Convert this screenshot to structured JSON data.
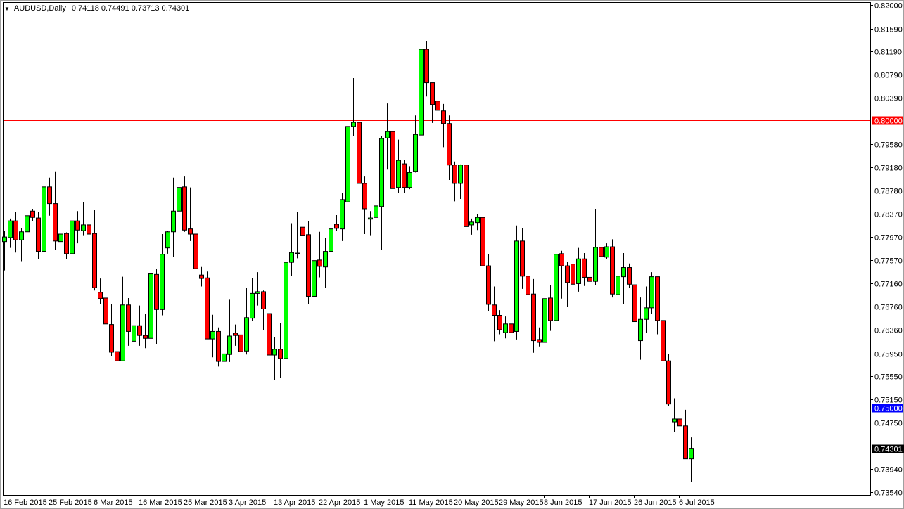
{
  "header": {
    "symbol": "AUDUSD,Daily",
    "ohlc": "0.74118 0.74491 0.73713 0.74301",
    "dropdown_icon": "triangle-down-icon"
  },
  "colors": {
    "bull": "#00ff00",
    "bear": "#ff0000",
    "outline": "#000000",
    "resistance_line": "#ff0000",
    "support_line": "#0000ff",
    "price_label": "#000000"
  },
  "chart_data": {
    "type": "candlestick",
    "title": "",
    "symbol": "AUDUSD",
    "timeframe": "Daily",
    "ylim": [
      0.7354,
      0.82
    ],
    "grid": false,
    "y_ticks": [
      "0.82000",
      "0.81590",
      "0.81190",
      "0.80790",
      "0.80390",
      "0.79580",
      "0.79180",
      "0.78780",
      "0.78370",
      "0.77970",
      "0.77570",
      "0.77160",
      "0.76760",
      "0.76360",
      "0.75950",
      "0.75550",
      "0.75150",
      "0.74750",
      "0.73940",
      "0.73540"
    ],
    "x_ticks": [
      {
        "label": "16 Feb 2015",
        "bar": 0
      },
      {
        "label": "25 Feb 2015",
        "bar": 8
      },
      {
        "label": "6 Mar 2015",
        "bar": 16
      },
      {
        "label": "16 Mar 2015",
        "bar": 24
      },
      {
        "label": "25 Mar 2015",
        "bar": 32
      },
      {
        "label": "3 Apr 2015",
        "bar": 40
      },
      {
        "label": "13 Apr 2015",
        "bar": 48
      },
      {
        "label": "22 Apr 2015",
        "bar": 56
      },
      {
        "label": "1 May 2015",
        "bar": 64
      },
      {
        "label": "11 May 2015",
        "bar": 72
      },
      {
        "label": "20 May 2015",
        "bar": 80
      },
      {
        "label": "29 May 2015",
        "bar": 88
      },
      {
        "label": "8 Jun 2015",
        "bar": 96
      },
      {
        "label": "17 Jun 2015",
        "bar": 104
      },
      {
        "label": "26 Jun 2015",
        "bar": 112
      },
      {
        "label": "6 Jul 2015",
        "bar": 120
      }
    ],
    "hlines": [
      {
        "value": 0.8,
        "label": "0.80000",
        "color": "#ff0000"
      },
      {
        "value": 0.75,
        "label": "0.75000",
        "color": "#0000ff"
      }
    ],
    "last_price": {
      "value": 0.74301,
      "label": "0.74301"
    },
    "candles": [
      [
        0.7789,
        0.7807,
        0.7739,
        0.7797
      ],
      [
        0.7796,
        0.7829,
        0.7778,
        0.7825
      ],
      [
        0.7825,
        0.7841,
        0.777,
        0.7792
      ],
      [
        0.7792,
        0.7813,
        0.7755,
        0.7806
      ],
      [
        0.7806,
        0.7847,
        0.78,
        0.7834
      ],
      [
        0.7842,
        0.7846,
        0.7824,
        0.7831
      ],
      [
        0.783,
        0.784,
        0.7759,
        0.7772
      ],
      [
        0.7772,
        0.7886,
        0.7736,
        0.7884
      ],
      [
        0.7884,
        0.79,
        0.7834,
        0.7855
      ],
      [
        0.7855,
        0.7911,
        0.7774,
        0.779
      ],
      [
        0.7789,
        0.783,
        0.7789,
        0.7802
      ],
      [
        0.7803,
        0.7805,
        0.7759,
        0.7768
      ],
      [
        0.7768,
        0.7831,
        0.7747,
        0.7825
      ],
      [
        0.7825,
        0.7842,
        0.7786,
        0.7809
      ],
      [
        0.7808,
        0.7858,
        0.78,
        0.7818
      ],
      [
        0.7818,
        0.7823,
        0.7751,
        0.7802
      ],
      [
        0.7803,
        0.7844,
        0.7704,
        0.7709
      ],
      [
        0.7701,
        0.7725,
        0.7681,
        0.769
      ],
      [
        0.7691,
        0.7739,
        0.7629,
        0.7646
      ],
      [
        0.7645,
        0.7681,
        0.759,
        0.7597
      ],
      [
        0.7598,
        0.7631,
        0.7559,
        0.7582
      ],
      [
        0.7582,
        0.7728,
        0.7581,
        0.7679
      ],
      [
        0.7679,
        0.7691,
        0.7608,
        0.7633
      ],
      [
        0.7616,
        0.7657,
        0.7612,
        0.7643
      ],
      [
        0.7643,
        0.7678,
        0.7608,
        0.7626
      ],
      [
        0.7626,
        0.7663,
        0.7604,
        0.7621
      ],
      [
        0.7621,
        0.7845,
        0.759,
        0.7733
      ],
      [
        0.7732,
        0.7741,
        0.7611,
        0.7671
      ],
      [
        0.7671,
        0.7802,
        0.7661,
        0.7767
      ],
      [
        0.7778,
        0.7808,
        0.7768,
        0.7806
      ],
      [
        0.7806,
        0.79,
        0.7762,
        0.7842
      ],
      [
        0.7842,
        0.7935,
        0.7842,
        0.7883
      ],
      [
        0.7884,
        0.7902,
        0.7806,
        0.7809
      ],
      [
        0.7811,
        0.7883,
        0.779,
        0.7802
      ],
      [
        0.7802,
        0.7807,
        0.7741,
        0.7742
      ],
      [
        0.7731,
        0.7745,
        0.7711,
        0.7725
      ],
      [
        0.7726,
        0.7737,
        0.762,
        0.762
      ],
      [
        0.762,
        0.7662,
        0.7588,
        0.7633
      ],
      [
        0.7633,
        0.764,
        0.7572,
        0.7581
      ],
      [
        0.7581,
        0.7609,
        0.7526,
        0.7594
      ],
      [
        0.7593,
        0.7688,
        0.758,
        0.7625
      ],
      [
        0.763,
        0.7645,
        0.7608,
        0.7626
      ],
      [
        0.7627,
        0.7665,
        0.7581,
        0.7598
      ],
      [
        0.7599,
        0.7709,
        0.7593,
        0.7657
      ],
      [
        0.7656,
        0.7726,
        0.7651,
        0.7699
      ],
      [
        0.7699,
        0.7736,
        0.7678,
        0.7702
      ],
      [
        0.7702,
        0.7704,
        0.7636,
        0.7672
      ],
      [
        0.7664,
        0.7676,
        0.7592,
        0.7592
      ],
      [
        0.7592,
        0.7623,
        0.7549,
        0.7602
      ],
      [
        0.7602,
        0.7648,
        0.7552,
        0.7586
      ],
      [
        0.7586,
        0.778,
        0.757,
        0.7753
      ],
      [
        0.7753,
        0.7821,
        0.773,
        0.777
      ],
      [
        0.7769,
        0.7841,
        0.776,
        0.7769
      ],
      [
        0.7814,
        0.7824,
        0.7787,
        0.78
      ],
      [
        0.7801,
        0.7824,
        0.768,
        0.7694
      ],
      [
        0.7694,
        0.7772,
        0.7681,
        0.7756
      ],
      [
        0.7757,
        0.7806,
        0.7727,
        0.7746
      ],
      [
        0.7745,
        0.7795,
        0.7709,
        0.7772
      ],
      [
        0.7772,
        0.7839,
        0.7767,
        0.7811
      ],
      [
        0.7819,
        0.7835,
        0.7808,
        0.7812
      ],
      [
        0.7811,
        0.7873,
        0.779,
        0.7862
      ],
      [
        0.7858,
        0.8026,
        0.7857,
        0.7989
      ],
      [
        0.7989,
        0.8073,
        0.7973,
        0.7996
      ],
      [
        0.7996,
        0.8005,
        0.7859,
        0.789
      ],
      [
        0.789,
        0.7902,
        0.7802,
        0.7846
      ],
      [
        0.7828,
        0.7842,
        0.78,
        0.783
      ],
      [
        0.7831,
        0.7856,
        0.7814,
        0.7851
      ],
      [
        0.785,
        0.7973,
        0.7774,
        0.7968
      ],
      [
        0.7969,
        0.8029,
        0.7914,
        0.798
      ],
      [
        0.798,
        0.799,
        0.7859,
        0.7881
      ],
      [
        0.7883,
        0.7966,
        0.7873,
        0.793
      ],
      [
        0.7924,
        0.7931,
        0.7874,
        0.7883
      ],
      [
        0.7883,
        0.792,
        0.788,
        0.7909
      ],
      [
        0.7911,
        0.8008,
        0.7909,
        0.7975
      ],
      [
        0.7974,
        0.8161,
        0.7962,
        0.8123
      ],
      [
        0.8123,
        0.8137,
        0.8041,
        0.8065
      ],
      [
        0.8065,
        0.8065,
        0.7995,
        0.8027
      ],
      [
        0.8033,
        0.805,
        0.8004,
        0.8017
      ],
      [
        0.8016,
        0.8028,
        0.7953,
        0.7994
      ],
      [
        0.7994,
        0.8008,
        0.7896,
        0.7922
      ],
      [
        0.7922,
        0.7928,
        0.7859,
        0.789
      ],
      [
        0.789,
        0.7923,
        0.7863,
        0.7922
      ],
      [
        0.7922,
        0.793,
        0.7808,
        0.7815
      ],
      [
        0.7818,
        0.7829,
        0.7801,
        0.7823
      ],
      [
        0.7822,
        0.7837,
        0.7809,
        0.7831
      ],
      [
        0.7831,
        0.7837,
        0.7723,
        0.7747
      ],
      [
        0.7747,
        0.7767,
        0.7668,
        0.768
      ],
      [
        0.7679,
        0.7711,
        0.7616,
        0.7661
      ],
      [
        0.7661,
        0.767,
        0.7628,
        0.7636
      ],
      [
        0.7631,
        0.7659,
        0.7621,
        0.7646
      ],
      [
        0.7646,
        0.7667,
        0.7596,
        0.7631
      ],
      [
        0.7633,
        0.7817,
        0.7619,
        0.779
      ],
      [
        0.779,
        0.7812,
        0.7707,
        0.7729
      ],
      [
        0.7729,
        0.7762,
        0.7663,
        0.7697
      ],
      [
        0.7698,
        0.7724,
        0.7596,
        0.7617
      ],
      [
        0.7619,
        0.764,
        0.7607,
        0.7614
      ],
      [
        0.7614,
        0.772,
        0.7601,
        0.769
      ],
      [
        0.7691,
        0.7714,
        0.7634,
        0.7652
      ],
      [
        0.7652,
        0.7791,
        0.7642,
        0.7767
      ],
      [
        0.7768,
        0.7773,
        0.769,
        0.7747
      ],
      [
        0.7747,
        0.7754,
        0.7675,
        0.7718
      ],
      [
        0.775,
        0.7754,
        0.7708,
        0.7715
      ],
      [
        0.7716,
        0.7778,
        0.7702,
        0.7759
      ],
      [
        0.7759,
        0.7769,
        0.7712,
        0.7727
      ],
      [
        0.7727,
        0.7768,
        0.7633,
        0.772
      ],
      [
        0.772,
        0.7846,
        0.7713,
        0.7779
      ],
      [
        0.7779,
        0.778,
        0.7734,
        0.7763
      ],
      [
        0.7762,
        0.7786,
        0.7758,
        0.778
      ],
      [
        0.778,
        0.7793,
        0.7692,
        0.7698
      ],
      [
        0.7697,
        0.776,
        0.7678,
        0.7729
      ],
      [
        0.7728,
        0.7769,
        0.768,
        0.7744
      ],
      [
        0.7744,
        0.7751,
        0.7708,
        0.7715
      ],
      [
        0.7714,
        0.7726,
        0.7629,
        0.765
      ],
      [
        0.7617,
        0.7692,
        0.7584,
        0.7654
      ],
      [
        0.7654,
        0.7711,
        0.763,
        0.7674
      ],
      [
        0.7674,
        0.7736,
        0.7663,
        0.7728
      ],
      [
        0.7728,
        0.7728,
        0.7628,
        0.7652
      ],
      [
        0.7652,
        0.7653,
        0.7565,
        0.7582
      ],
      [
        0.7582,
        0.7594,
        0.7504,
        0.7507
      ],
      [
        0.7476,
        0.7517,
        0.7458,
        0.7481
      ],
      [
        0.7481,
        0.7532,
        0.7463,
        0.7469
      ],
      [
        0.7469,
        0.7497,
        0.7419,
        0.74118
      ],
      [
        0.74118,
        0.74491,
        0.73713,
        0.74301
      ]
    ]
  }
}
